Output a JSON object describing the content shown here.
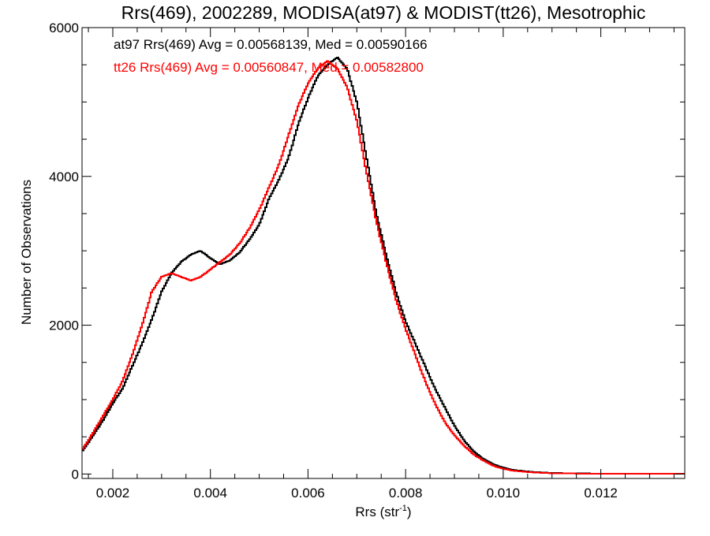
{
  "chart_data": {
    "type": "line",
    "step": true,
    "title": "Rrs(469), 2002289, MODISA(at97) & MODIST(tt26), Mesotrophic",
    "xlabel": "Rrs (str",
    "xlabel_sup": "-1",
    "xlabel_close": ")",
    "ylabel": "Number of Observations",
    "xlim": [
      0.00137,
      0.01372
    ],
    "ylim": [
      -60,
      6000
    ],
    "xticks": [
      0.002,
      0.004,
      0.006,
      0.008,
      0.01,
      0.012
    ],
    "xtick_labels": [
      "0.002",
      "0.004",
      "0.006",
      "0.008",
      "0.010",
      "0.012"
    ],
    "yticks": [
      0,
      2000,
      4000,
      6000
    ],
    "ytick_labels": [
      "0",
      "2000",
      "4000",
      "6000"
    ],
    "grid": false,
    "legend_position": "top-left",
    "colors": {
      "at97": "#000000",
      "tt26": "#ff0000",
      "axes": "#000000",
      "background": "#ffffff"
    },
    "annotations": [
      {
        "text": "at97 Rrs(469) Avg = 0.00568139, Med = 0.00590166",
        "color": "#000000"
      },
      {
        "text": "tt26 Rrs(469) Avg = 0.00560847, Med = 0.00582800",
        "color": "#ff0000"
      }
    ],
    "series": [
      {
        "key": "at97",
        "color": "#000000",
        "x": [
          0.00137,
          0.0016,
          0.0018,
          0.002,
          0.0022,
          0.0024,
          0.0026,
          0.0028,
          0.003,
          0.0032,
          0.0034,
          0.0036,
          0.0038,
          0.004,
          0.0042,
          0.0044,
          0.0046,
          0.0048,
          0.005,
          0.0052,
          0.0054,
          0.0056,
          0.0058,
          0.006,
          0.0062,
          0.0064,
          0.0066,
          0.0068,
          0.007,
          0.0072,
          0.0074,
          0.0076,
          0.0078,
          0.008,
          0.0082,
          0.0084,
          0.0086,
          0.0088,
          0.009,
          0.0092,
          0.0094,
          0.0096,
          0.0098,
          0.01,
          0.0102,
          0.0104,
          0.0106,
          0.0108,
          0.011,
          0.0115,
          0.012,
          0.0125,
          0.013,
          0.01372
        ],
        "y": [
          300,
          520,
          720,
          950,
          1150,
          1450,
          1750,
          2080,
          2450,
          2700,
          2850,
          2950,
          3000,
          2900,
          2820,
          2870,
          2980,
          3150,
          3350,
          3700,
          3950,
          4250,
          4700,
          5050,
          5350,
          5500,
          5600,
          5450,
          5000,
          4250,
          3500,
          2950,
          2450,
          2050,
          1750,
          1450,
          1150,
          900,
          650,
          450,
          300,
          200,
          130,
          85,
          55,
          40,
          28,
          20,
          14,
          8,
          5,
          3,
          2,
          1
        ]
      },
      {
        "key": "tt26",
        "color": "#ff0000",
        "x": [
          0.00137,
          0.0016,
          0.0018,
          0.002,
          0.0022,
          0.0024,
          0.0026,
          0.0028,
          0.003,
          0.0032,
          0.0034,
          0.0036,
          0.0038,
          0.004,
          0.0042,
          0.0044,
          0.0046,
          0.0048,
          0.005,
          0.0052,
          0.0054,
          0.0056,
          0.0058,
          0.006,
          0.0062,
          0.0064,
          0.0066,
          0.0068,
          0.007,
          0.0072,
          0.0074,
          0.0076,
          0.0078,
          0.008,
          0.0082,
          0.0084,
          0.0086,
          0.0088,
          0.009,
          0.0092,
          0.0094,
          0.0096,
          0.0098,
          0.01,
          0.0102,
          0.0104,
          0.0106,
          0.0108,
          0.011,
          0.0115,
          0.012,
          0.0125,
          0.013,
          0.01372
        ],
        "y": [
          320,
          560,
          780,
          1000,
          1250,
          1600,
          2000,
          2450,
          2650,
          2700,
          2650,
          2600,
          2650,
          2750,
          2850,
          2950,
          3100,
          3300,
          3550,
          3850,
          4150,
          4550,
          4950,
          5250,
          5450,
          5550,
          5450,
          5200,
          4750,
          4050,
          3400,
          2850,
          2350,
          1950,
          1600,
          1250,
          950,
          700,
          520,
          380,
          260,
          180,
          110,
          70,
          45,
          32,
          22,
          15,
          10,
          6,
          4,
          2,
          1,
          1
        ]
      }
    ]
  }
}
